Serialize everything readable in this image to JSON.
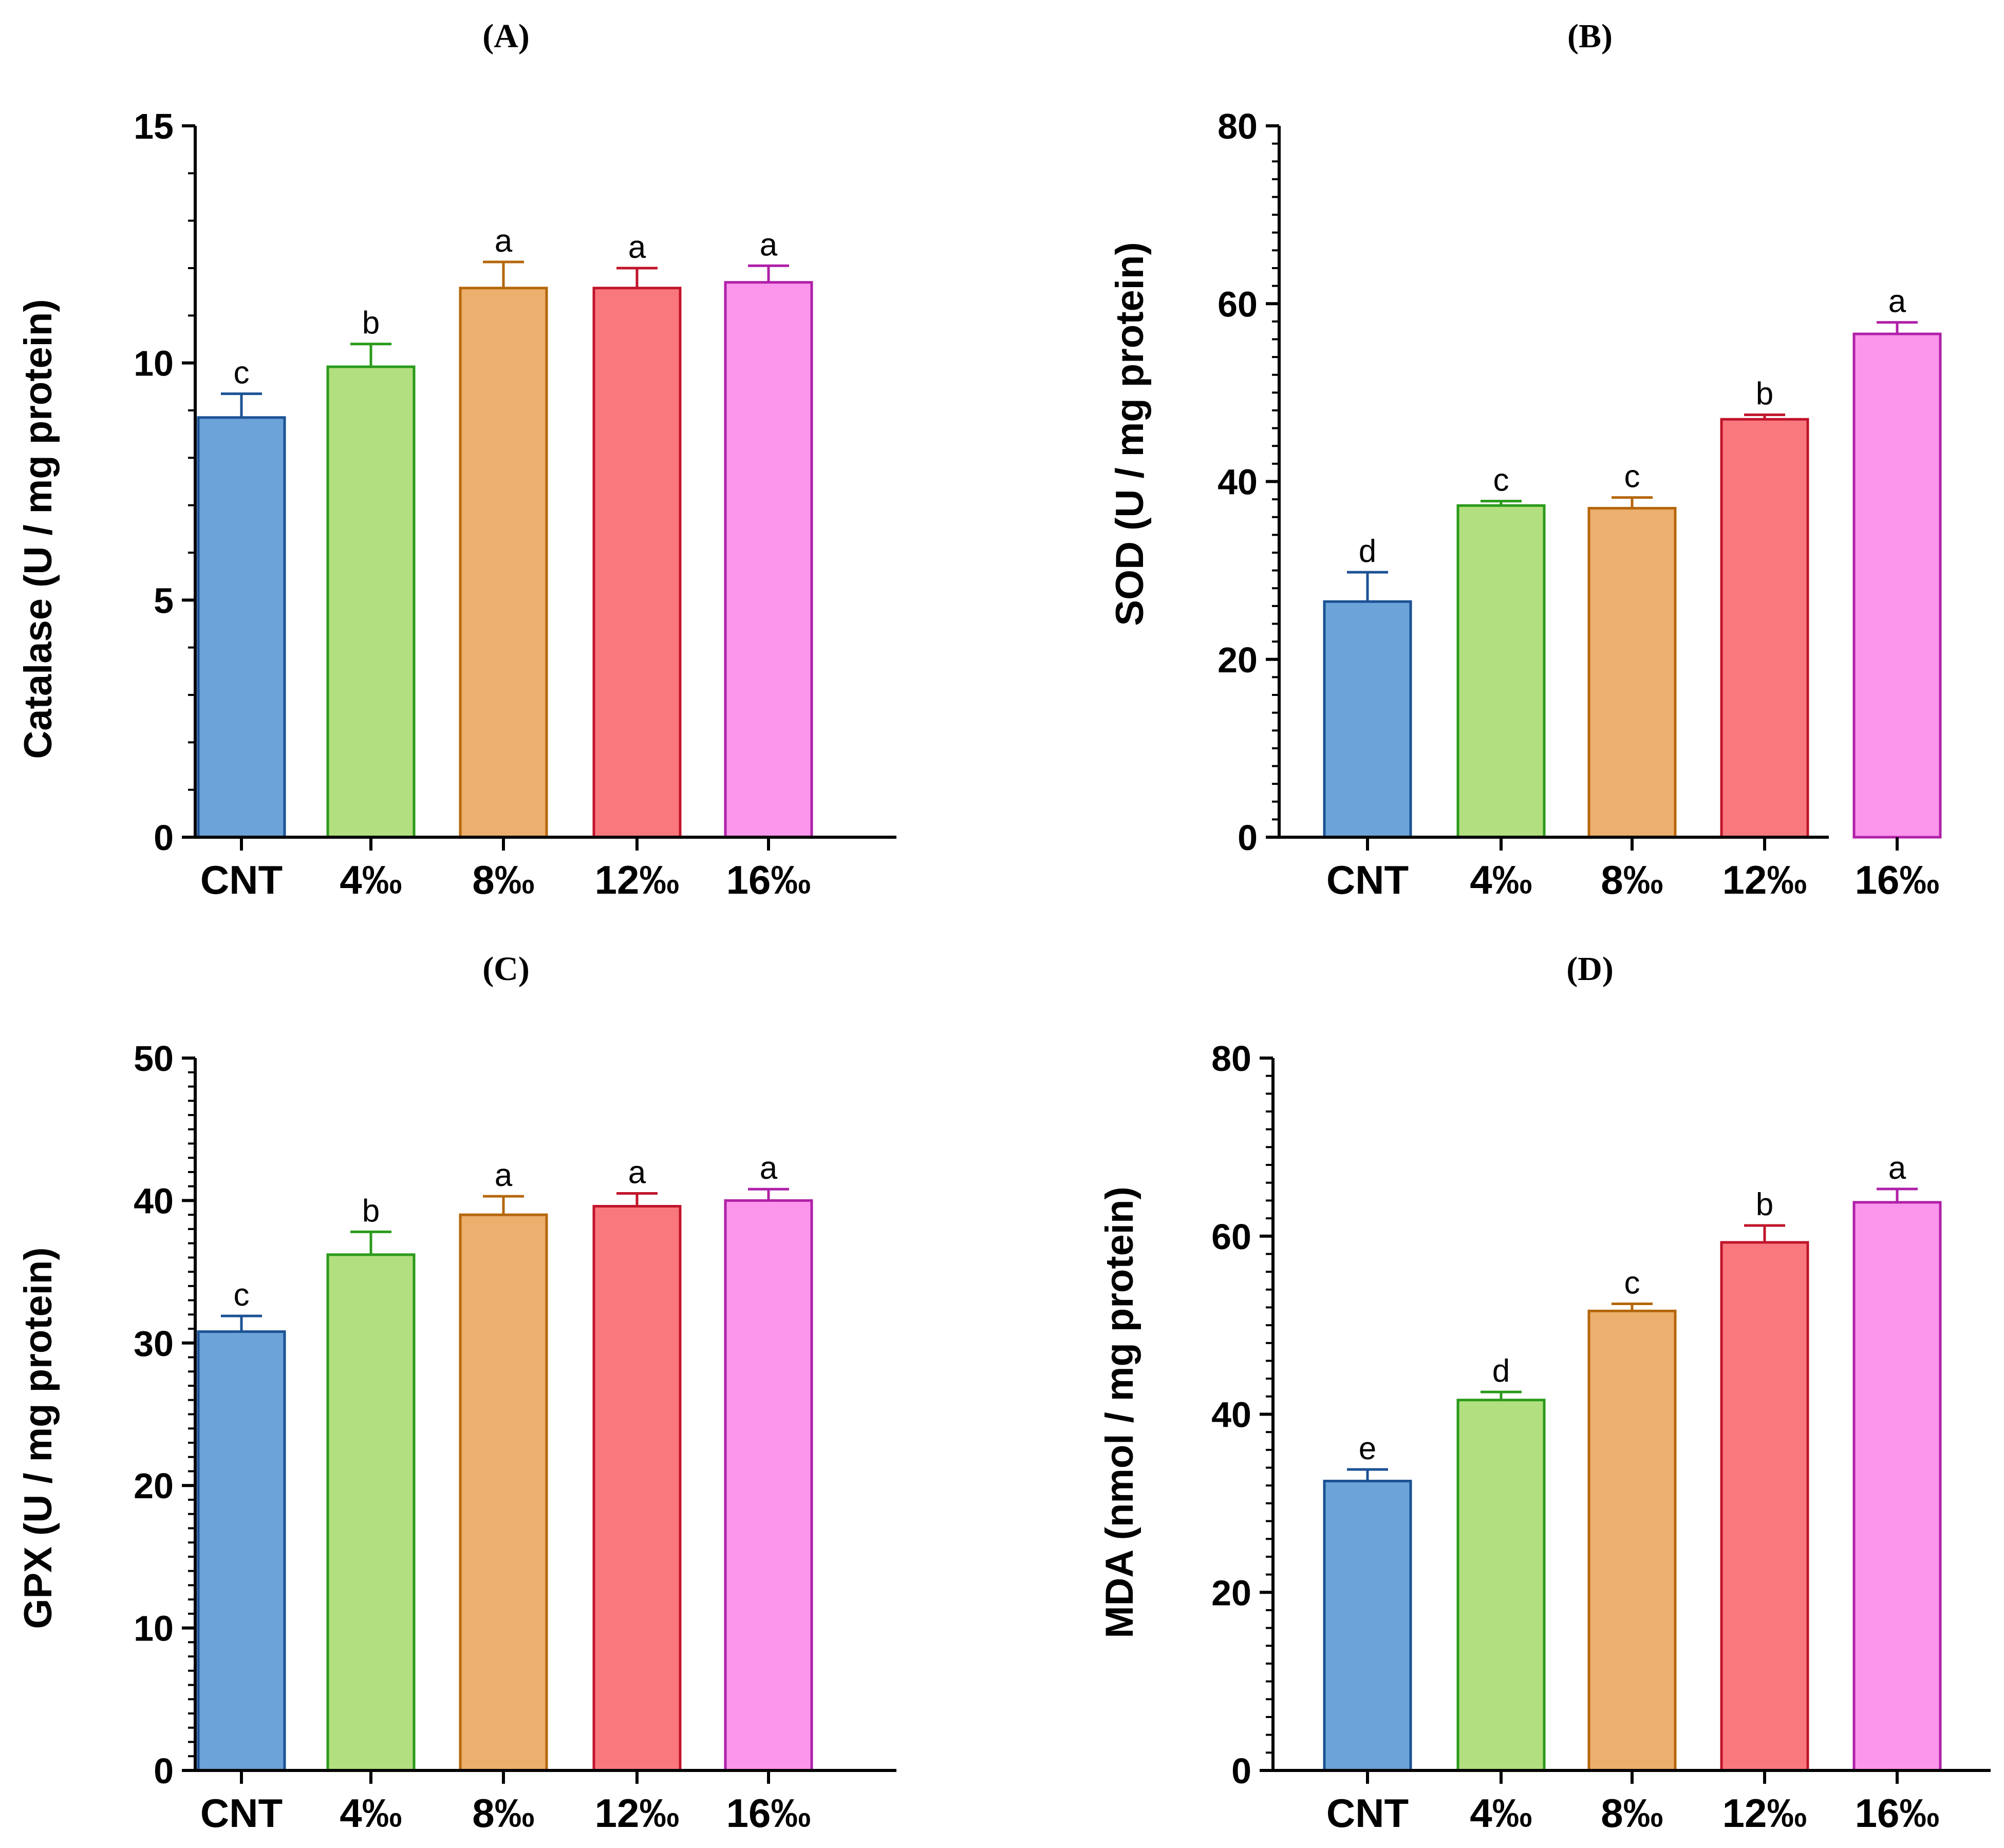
{
  "chart_data": [
    {
      "type": "bar",
      "title": "(A)",
      "ylabel": "Catalase (U / mg protein)",
      "xlabel": "",
      "categories": [
        "CNT",
        "4‰",
        "8‰",
        "12‰",
        "16‰"
      ],
      "values": [
        8.85,
        9.92,
        11.58,
        11.58,
        11.7
      ],
      "errors": [
        0.5,
        0.48,
        0.55,
        0.42,
        0.35
      ],
      "significance": [
        "c",
        "b",
        "a",
        "a",
        "a"
      ],
      "ylim": [
        0,
        15
      ],
      "yticks": [
        0,
        5,
        10,
        15
      ],
      "ytick_labels": [
        "0",
        "5",
        "10",
        "15"
      ],
      "minor_per_major": 5
    },
    {
      "type": "bar",
      "title": "(B)",
      "ylabel": "SOD (U / mg protein)",
      "xlabel": "",
      "categories": [
        "CNT",
        "4‰",
        "8‰",
        "12‰",
        "16‰"
      ],
      "values": [
        26.5,
        37.3,
        37.0,
        47.0,
        56.6
      ],
      "errors": [
        3.3,
        0.5,
        1.2,
        0.5,
        1.3
      ],
      "significance": [
        "d",
        "c",
        "c",
        "b",
        "a"
      ],
      "ylim": [
        0,
        80
      ],
      "yticks": [
        0,
        20,
        40,
        60,
        80
      ],
      "ytick_labels": [
        "0",
        "20",
        "40",
        "60",
        "80"
      ],
      "minor_per_major": 10
    },
    {
      "type": "bar",
      "title": "(C)",
      "ylabel": "GPX (U / mg protein)",
      "xlabel": "",
      "categories": [
        "CNT",
        "4‰",
        "8‰",
        "12‰",
        "16‰"
      ],
      "values": [
        30.8,
        36.2,
        39.0,
        39.6,
        40.0
      ],
      "errors": [
        1.1,
        1.6,
        1.3,
        0.9,
        0.8
      ],
      "significance": [
        "c",
        "b",
        "a",
        "a",
        "a"
      ],
      "ylim": [
        0,
        50
      ],
      "yticks": [
        0,
        10,
        20,
        30,
        40,
        50
      ],
      "ytick_labels": [
        "0",
        "10",
        "20",
        "30",
        "40",
        "50"
      ],
      "minor_per_major": 10
    },
    {
      "type": "bar",
      "title": "(D)",
      "ylabel": "MDA (nmol / mg protein)",
      "xlabel": "",
      "categories": [
        "CNT",
        "4‰",
        "8‰",
        "12‰",
        "16‰"
      ],
      "values": [
        32.5,
        41.6,
        51.6,
        59.3,
        63.8
      ],
      "errors": [
        1.3,
        0.9,
        0.8,
        1.9,
        1.5
      ],
      "significance": [
        "e",
        "d",
        "c",
        "b",
        "a"
      ],
      "ylim": [
        0,
        80
      ],
      "yticks": [
        0,
        20,
        40,
        60,
        80
      ],
      "ytick_labels": [
        "0",
        "20",
        "40",
        "60",
        "80"
      ],
      "minor_per_major": 10
    }
  ],
  "colors": {
    "fills": [
      "#6ca3d8",
      "#b2df7f",
      "#edaf6d",
      "#f9787e",
      "#fc95ec"
    ],
    "strokes": [
      "#1b5294",
      "#2a9a1b",
      "#b5660a",
      "#c0142a",
      "#b020a8"
    ],
    "axis": "#000000"
  }
}
